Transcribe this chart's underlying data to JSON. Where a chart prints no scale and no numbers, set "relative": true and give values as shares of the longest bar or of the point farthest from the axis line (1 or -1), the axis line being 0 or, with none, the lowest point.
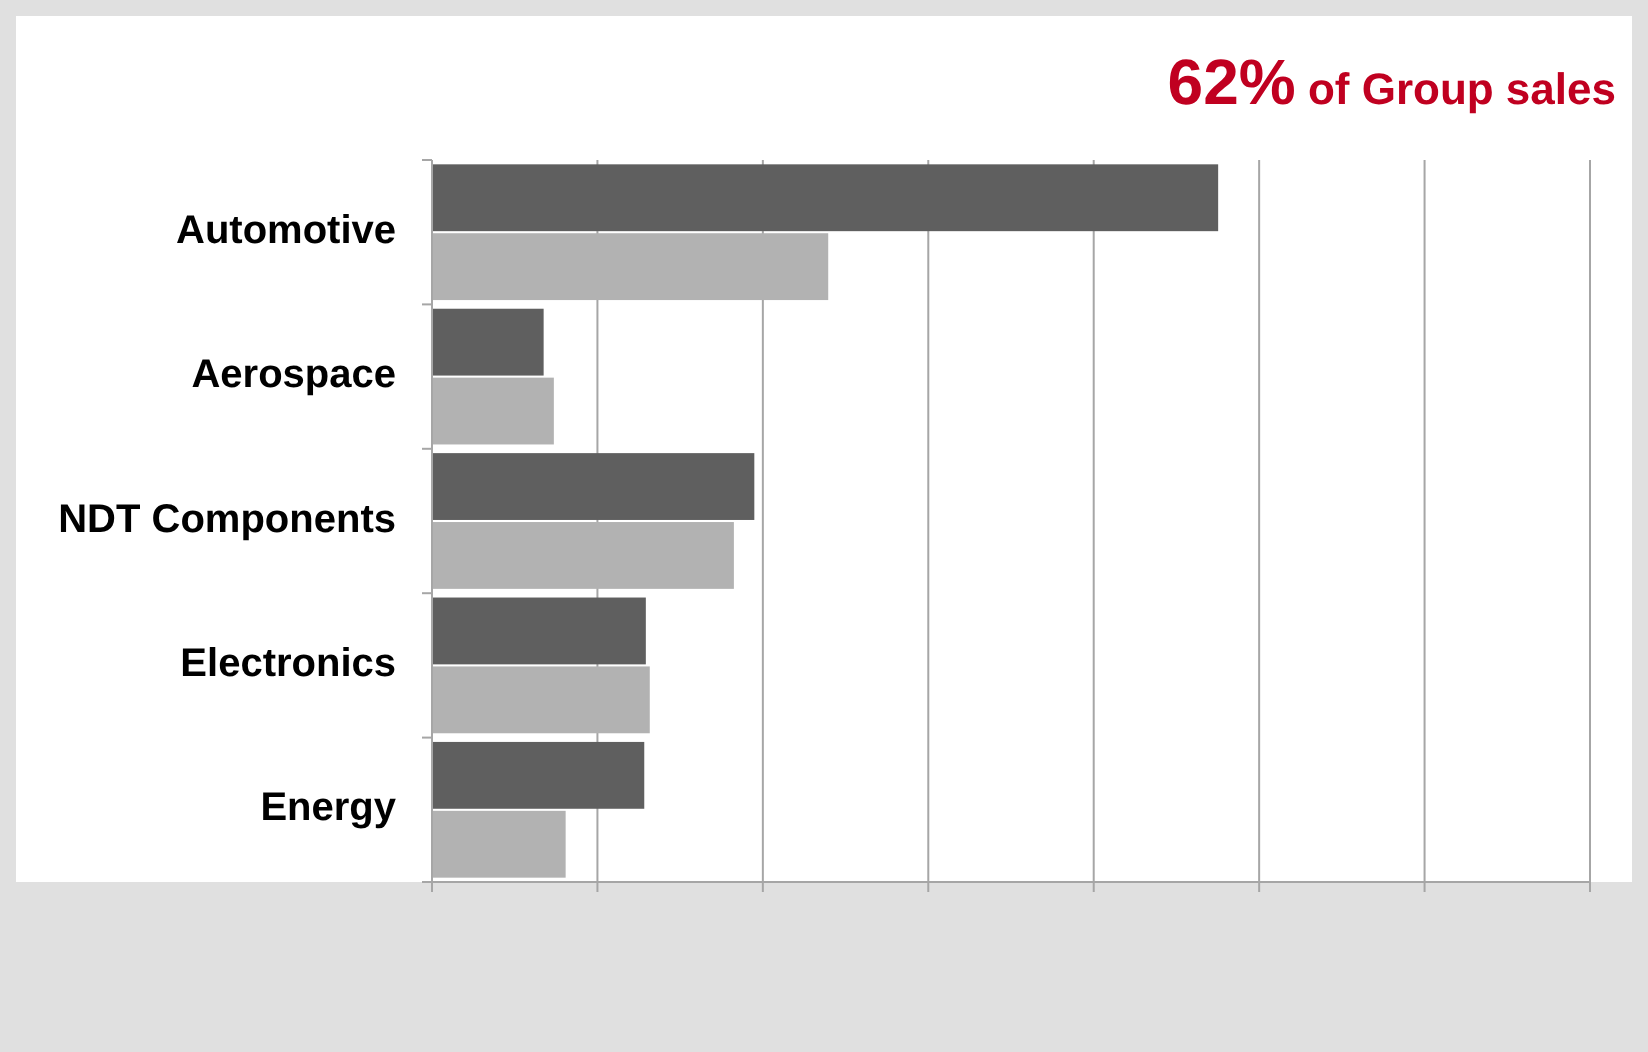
{
  "chart_data": {
    "type": "bar",
    "orientation": "horizontal",
    "relative": true,
    "title": "62% of Group sales",
    "categories": [
      "Automotive",
      "Aerospace",
      "NDT Components",
      "Electronics",
      "Energy"
    ],
    "series": [
      {
        "color": "#5f5f5f",
        "values": [
          1,
          0.142,
          0.41,
          0.272,
          0.27
        ]
      },
      {
        "color": "#b2b2b2",
        "values": [
          0.504,
          0.155,
          0.384,
          0.277,
          0.17
        ]
      }
    ],
    "grid": "x"
  }
}
